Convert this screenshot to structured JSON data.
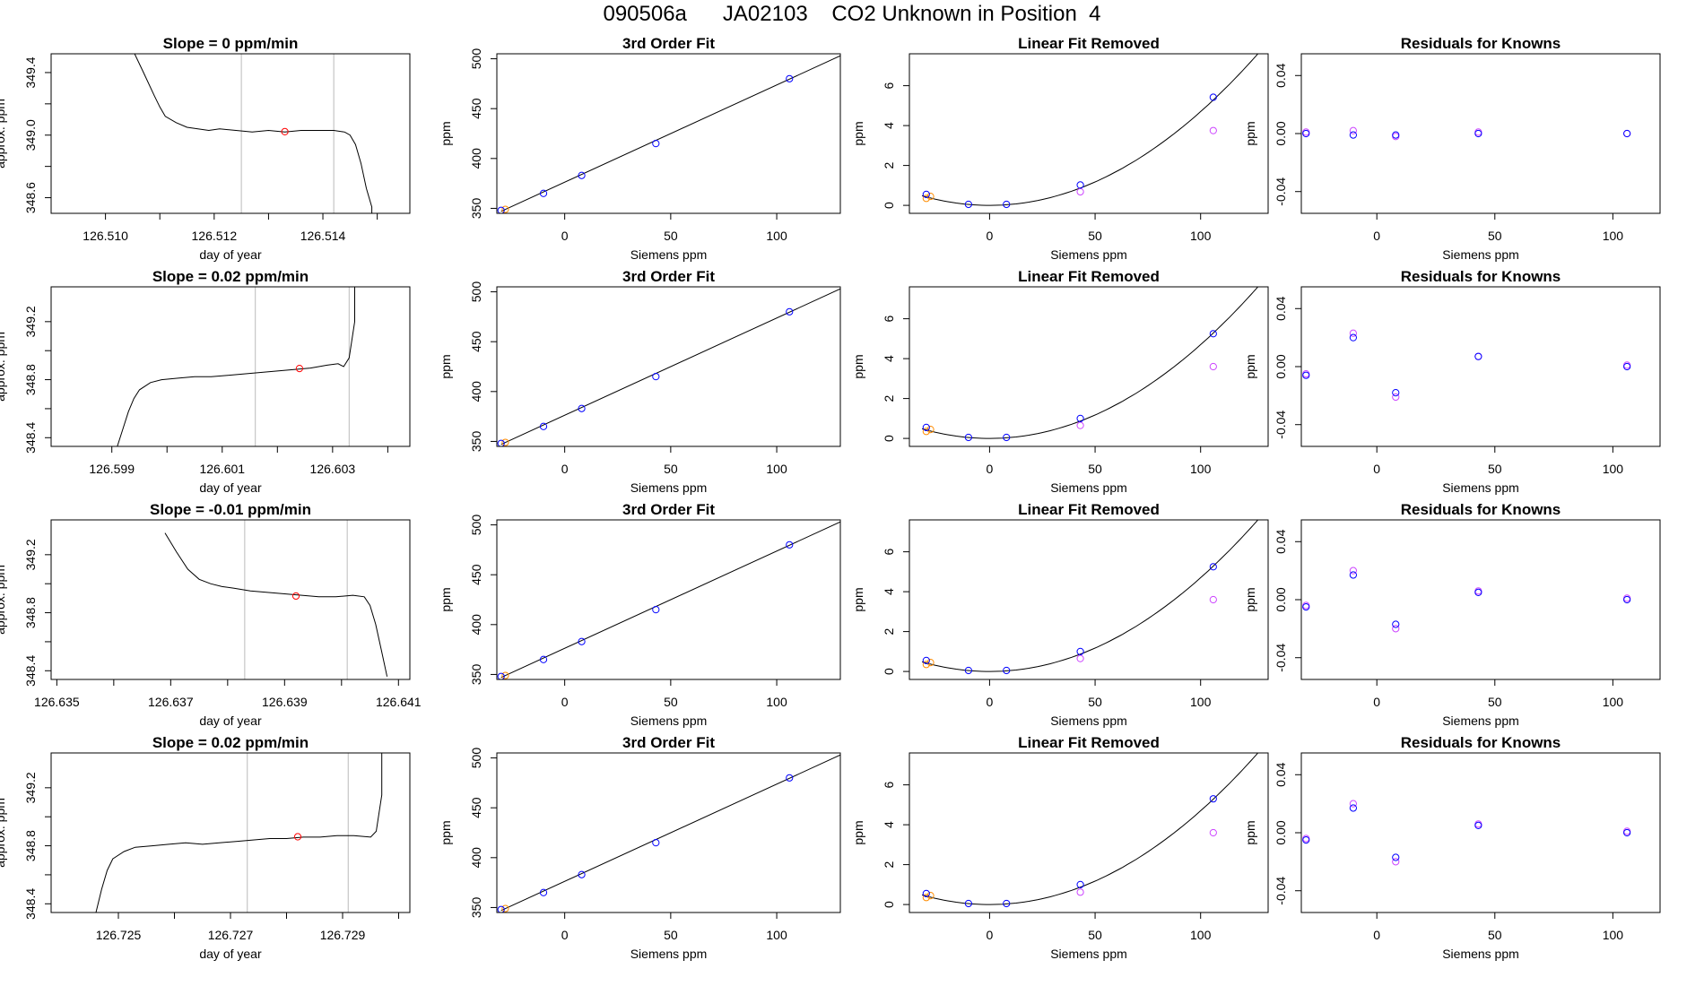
{
  "page": {
    "title_parts": [
      "090506a",
      "JA02103",
      "CO2 Unknown in Position",
      "4"
    ]
  },
  "colors": {
    "standard_point": "#0000ff",
    "first_point": "#ff8c00",
    "unknown_point": "#ff0000",
    "fitted_point": "#cc44ff",
    "trace": "#000000",
    "window_line": "#bbbbbb"
  },
  "chart_data": [
    {
      "type": "line",
      "title": "Slope =  0  ppm/min",
      "xlabel": "day of year",
      "ylabel": "approx. ppm",
      "xlim": [
        126.509,
        126.5156
      ],
      "ylim": [
        348.5,
        349.52
      ],
      "xticks": [
        126.51,
        126.512,
        126.514
      ],
      "xtick_labels": [
        "126.510",
        "126.512",
        "126.514"
      ],
      "xminor": [
        126.511,
        126.513,
        126.515
      ],
      "yticks": [
        348.6,
        349.0,
        349.4
      ],
      "ytick_labels": [
        "348.6",
        "349.0",
        "349.4"
      ],
      "yminor": [
        348.8,
        349.2
      ],
      "window": [
        126.5125,
        126.5142
      ],
      "unknown_point": {
        "x": 126.5133,
        "y": 349.022
      },
      "x": [
        126.5104,
        126.5107,
        126.5109,
        126.511,
        126.5111,
        126.5113,
        126.5115,
        126.5117,
        126.5119,
        126.5121,
        126.5124,
        126.5127,
        126.513,
        126.5133,
        126.5136,
        126.5139,
        126.5142,
        126.5144,
        126.5145,
        126.5146,
        126.5147,
        126.5148,
        126.5149,
        126.5149
      ],
      "y": [
        349.62,
        349.4,
        349.25,
        349.18,
        349.12,
        349.08,
        349.05,
        349.04,
        349.03,
        349.04,
        349.03,
        349.02,
        349.03,
        349.02,
        349.03,
        349.03,
        349.03,
        349.02,
        349.0,
        348.94,
        348.82,
        348.66,
        348.54,
        348.5
      ]
    },
    {
      "type": "scatter",
      "title": "3rd Order Fit",
      "xlabel": "Siemens ppm",
      "ylabel": "ppm",
      "xlim": [
        -32,
        130
      ],
      "ylim": [
        345,
        505
      ],
      "xticks": [
        0,
        50,
        100
      ],
      "yticks": [
        350,
        400,
        450,
        500
      ],
      "standards_x": [
        -30,
        -10,
        8,
        43,
        106
      ],
      "standards_y": [
        348,
        365,
        383,
        415,
        480
      ],
      "first_x": [
        -28
      ],
      "first_y": [
        349
      ],
      "fit_line": {
        "x": [
          -30,
          130
        ],
        "y": [
          347,
          503
        ]
      }
    },
    {
      "type": "scatter",
      "title": "Linear Fit Removed",
      "xlabel": "Siemens ppm",
      "ylabel": "ppm",
      "xlim": [
        -38,
        132
      ],
      "ylim": [
        -0.4,
        7.6
      ],
      "xticks": [
        0,
        50,
        100
      ],
      "yticks": [
        0,
        2,
        4,
        6
      ],
      "standards_x": [
        -30,
        -10,
        8,
        43,
        106
      ],
      "standards_y": [
        0.55,
        0.05,
        0.05,
        1.02,
        5.42
      ],
      "first_x": [
        -28,
        -30
      ],
      "first_y": [
        0.45,
        0.35
      ],
      "fitted_x": [
        43,
        106
      ],
      "fitted_y": [
        0.68,
        3.75
      ],
      "curve": {
        "a": 0.00047,
        "b": 0
      }
    },
    {
      "type": "scatter",
      "title": "Residuals for Knowns",
      "xlabel": "Siemens ppm",
      "ylabel": "ppm",
      "xlim": [
        -32,
        120
      ],
      "ylim": [
        -0.055,
        0.055
      ],
      "xticks": [
        0,
        50,
        100
      ],
      "yticks": [
        -0.04,
        0,
        0.04
      ],
      "ytick_labels": [
        "-0.04",
        "0.00",
        "0.04"
      ],
      "standards_x": [
        -30,
        -10,
        8,
        43,
        106
      ],
      "standards_y": [
        0,
        -0.001,
        -0.001,
        0,
        0
      ],
      "fitted_x": [
        -30,
        -10,
        8,
        43,
        106
      ],
      "fitted_y": [
        0.001,
        0.002,
        -0.002,
        0.001,
        0
      ]
    },
    {
      "type": "line",
      "title": "Slope =  0.02  ppm/min",
      "xlabel": "day of year",
      "ylabel": "approx. ppm",
      "xlim": [
        126.5979,
        126.6044
      ],
      "ylim": [
        348.34,
        349.44
      ],
      "xticks": [
        126.599,
        126.601,
        126.603
      ],
      "xtick_labels": [
        "126.599",
        "126.601",
        "126.603"
      ],
      "xminor": [
        126.6,
        126.602,
        126.604
      ],
      "yticks": [
        348.4,
        348.8,
        349.2
      ],
      "ytick_labels": [
        "348.4",
        "348.8",
        "349.2"
      ],
      "yminor": [
        348.6,
        349.0
      ],
      "window": [
        126.6016,
        126.6033
      ],
      "unknown_point": {
        "x": 126.6024,
        "y": 348.877
      },
      "x": [
        126.5991,
        126.5992,
        126.5993,
        126.5994,
        126.5995,
        126.5997,
        126.5999,
        126.6002,
        126.6005,
        126.6008,
        126.6011,
        126.6014,
        126.6017,
        126.602,
        126.6023,
        126.6026,
        126.6029,
        126.6031,
        126.6032,
        126.6033,
        126.6034,
        126.6034
      ],
      "y": [
        348.34,
        348.46,
        348.58,
        348.67,
        348.73,
        348.78,
        348.8,
        348.81,
        348.82,
        348.82,
        348.83,
        348.84,
        348.85,
        348.86,
        348.87,
        348.88,
        348.9,
        348.91,
        348.89,
        348.95,
        349.2,
        349.44
      ]
    },
    {
      "type": "scatter",
      "title": "3rd Order Fit",
      "xlabel": "Siemens ppm",
      "ylabel": "ppm",
      "xlim": [
        -32,
        130
      ],
      "ylim": [
        345,
        505
      ],
      "xticks": [
        0,
        50,
        100
      ],
      "yticks": [
        350,
        400,
        450,
        500
      ],
      "standards_x": [
        -30,
        -10,
        8,
        43,
        106
      ],
      "standards_y": [
        348,
        365,
        383,
        415,
        480
      ],
      "first_x": [
        -28
      ],
      "first_y": [
        349
      ],
      "fit_line": {
        "x": [
          -30,
          130
        ],
        "y": [
          347,
          503
        ]
      }
    },
    {
      "type": "scatter",
      "title": "Linear Fit Removed",
      "xlabel": "Siemens ppm",
      "ylabel": "ppm",
      "xlim": [
        -38,
        132
      ],
      "ylim": [
        -0.4,
        7.6
      ],
      "xticks": [
        0,
        50,
        100
      ],
      "yticks": [
        0,
        2,
        4,
        6
      ],
      "standards_x": [
        -30,
        -10,
        8,
        43,
        106
      ],
      "standards_y": [
        0.55,
        0.05,
        0.05,
        1.0,
        5.25
      ],
      "first_x": [
        -28,
        -30
      ],
      "first_y": [
        0.45,
        0.35
      ],
      "fitted_x": [
        43,
        106
      ],
      "fitted_y": [
        0.65,
        3.6
      ],
      "curve": {
        "a": 0.00047,
        "b": 0
      }
    },
    {
      "type": "scatter",
      "title": "Residuals for Knowns",
      "xlabel": "Siemens ppm",
      "ylabel": "ppm",
      "xlim": [
        -32,
        120
      ],
      "ylim": [
        -0.055,
        0.055
      ],
      "xticks": [
        0,
        50,
        100
      ],
      "yticks": [
        -0.04,
        0,
        0.04
      ],
      "ytick_labels": [
        "-0.04",
        "0.00",
        "0.04"
      ],
      "standards_x": [
        -30,
        -10,
        8,
        43,
        106
      ],
      "standards_y": [
        -0.006,
        0.02,
        -0.018,
        0.007,
        0
      ],
      "fitted_x": [
        -30,
        -10,
        8,
        43,
        106
      ],
      "fitted_y": [
        -0.005,
        0.023,
        -0.021,
        0.007,
        0.001
      ]
    },
    {
      "type": "line",
      "title": "Slope =  -0.01  ppm/min",
      "xlabel": "day of year",
      "ylabel": "approx. ppm",
      "xlim": [
        126.6349,
        126.6412
      ],
      "ylim": [
        348.34,
        349.44
      ],
      "xticks": [
        126.635,
        126.637,
        126.639,
        126.641
      ],
      "xtick_labels": [
        "126.635",
        "126.637",
        "126.639",
        "126.641"
      ],
      "xminor": [
        126.636,
        126.638,
        126.64
      ],
      "yticks": [
        348.4,
        348.8,
        349.2
      ],
      "ytick_labels": [
        "348.4",
        "348.8",
        "349.2"
      ],
      "yminor": [
        348.6,
        349.0
      ],
      "window": [
        126.6383,
        126.6401
      ],
      "unknown_point": {
        "x": 126.6392,
        "y": 348.915
      },
      "x": [
        126.6369,
        126.6371,
        126.6373,
        126.6375,
        126.6377,
        126.6379,
        126.6381,
        126.6384,
        126.6387,
        126.639,
        126.6393,
        126.6396,
        126.6399,
        126.6402,
        126.6404,
        126.6405,
        126.6406,
        126.6407,
        126.6408
      ],
      "y": [
        349.35,
        349.22,
        349.1,
        349.03,
        349.0,
        348.98,
        348.97,
        348.95,
        348.94,
        348.93,
        348.92,
        348.91,
        348.91,
        348.92,
        348.91,
        348.85,
        348.72,
        348.54,
        348.36
      ]
    },
    {
      "type": "scatter",
      "title": "3rd Order Fit",
      "xlabel": "Siemens ppm",
      "ylabel": "ppm",
      "xlim": [
        -32,
        130
      ],
      "ylim": [
        345,
        505
      ],
      "xticks": [
        0,
        50,
        100
      ],
      "yticks": [
        350,
        400,
        450,
        500
      ],
      "standards_x": [
        -30,
        -10,
        8,
        43,
        106
      ],
      "standards_y": [
        348,
        365,
        383,
        415,
        480
      ],
      "first_x": [
        -28
      ],
      "first_y": [
        349
      ],
      "fit_line": {
        "x": [
          -30,
          130
        ],
        "y": [
          347,
          503
        ]
      }
    },
    {
      "type": "scatter",
      "title": "Linear Fit Removed",
      "xlabel": "Siemens ppm",
      "ylabel": "ppm",
      "xlim": [
        -38,
        132
      ],
      "ylim": [
        -0.4,
        7.6
      ],
      "xticks": [
        0,
        50,
        100
      ],
      "yticks": [
        0,
        2,
        4,
        6
      ],
      "standards_x": [
        -30,
        -10,
        8,
        43,
        106
      ],
      "standards_y": [
        0.55,
        0.05,
        0.05,
        1.0,
        5.25
      ],
      "first_x": [
        -28,
        -30
      ],
      "first_y": [
        0.45,
        0.35
      ],
      "fitted_x": [
        43,
        106
      ],
      "fitted_y": [
        0.65,
        3.6
      ],
      "curve": {
        "a": 0.00047,
        "b": 0
      }
    },
    {
      "type": "scatter",
      "title": "Residuals for Knowns",
      "xlabel": "Siemens ppm",
      "ylabel": "ppm",
      "xlim": [
        -32,
        120
      ],
      "ylim": [
        -0.055,
        0.055
      ],
      "xticks": [
        0,
        50,
        100
      ],
      "yticks": [
        -0.04,
        0,
        0.04
      ],
      "ytick_labels": [
        "-0.04",
        "0.00",
        "0.04"
      ],
      "standards_x": [
        -30,
        -10,
        8,
        43,
        106
      ],
      "standards_y": [
        -0.005,
        0.017,
        -0.017,
        0.005,
        0
      ],
      "fitted_x": [
        -30,
        -10,
        8,
        43,
        106
      ],
      "fitted_y": [
        -0.004,
        0.02,
        -0.02,
        0.006,
        0.001
      ]
    },
    {
      "type": "line",
      "title": "Slope =  0.02  ppm/min",
      "xlabel": "day of year",
      "ylabel": "approx. ppm",
      "xlim": [
        126.7238,
        126.7302
      ],
      "ylim": [
        348.34,
        349.44
      ],
      "xticks": [
        126.725,
        126.727,
        126.729
      ],
      "xtick_labels": [
        "126.725",
        "126.727",
        "126.729"
      ],
      "xminor": [
        126.726,
        126.728,
        126.73
      ],
      "yticks": [
        348.4,
        348.8,
        349.2
      ],
      "ytick_labels": [
        "348.4",
        "348.8",
        "349.2"
      ],
      "yminor": [
        348.6,
        349.0
      ],
      "window": [
        126.7273,
        126.7291
      ],
      "unknown_point": {
        "x": 126.7282,
        "y": 348.862
      },
      "x": [
        126.7246,
        126.7247,
        126.7248,
        126.7249,
        126.7251,
        126.7253,
        126.7256,
        126.7259,
        126.7262,
        126.7265,
        126.7268,
        126.7271,
        126.7274,
        126.7277,
        126.728,
        126.7283,
        126.7286,
        126.7289,
        126.7292,
        126.7295,
        126.7296,
        126.7297,
        126.7297
      ],
      "y": [
        348.34,
        348.5,
        348.63,
        348.71,
        348.76,
        348.79,
        348.8,
        348.81,
        348.82,
        348.81,
        348.82,
        348.83,
        348.84,
        348.85,
        348.85,
        348.86,
        348.86,
        348.87,
        348.87,
        348.86,
        348.9,
        349.15,
        349.44
      ]
    },
    {
      "type": "scatter",
      "title": "3rd Order Fit",
      "xlabel": "Siemens ppm",
      "ylabel": "ppm",
      "xlim": [
        -32,
        130
      ],
      "ylim": [
        345,
        505
      ],
      "xticks": [
        0,
        50,
        100
      ],
      "yticks": [
        350,
        400,
        450,
        500
      ],
      "standards_x": [
        -30,
        -10,
        8,
        43,
        106
      ],
      "standards_y": [
        348,
        365,
        383,
        415,
        480
      ],
      "first_x": [
        -28
      ],
      "first_y": [
        349
      ],
      "fit_line": {
        "x": [
          -30,
          130
        ],
        "y": [
          347,
          503
        ]
      }
    },
    {
      "type": "scatter",
      "title": "Linear Fit Removed",
      "xlabel": "Siemens ppm",
      "ylabel": "ppm",
      "xlim": [
        -38,
        132
      ],
      "ylim": [
        -0.4,
        7.6
      ],
      "xticks": [
        0,
        50,
        100
      ],
      "yticks": [
        0,
        2,
        4,
        6
      ],
      "standards_x": [
        -30,
        -10,
        8,
        43,
        106
      ],
      "standards_y": [
        0.55,
        0.05,
        0.05,
        1.0,
        5.3
      ],
      "first_x": [
        -28,
        -30
      ],
      "first_y": [
        0.45,
        0.35
      ],
      "fitted_x": [
        43,
        106
      ],
      "fitted_y": [
        0.62,
        3.6
      ],
      "curve": {
        "a": 0.00047,
        "b": 0
      }
    },
    {
      "type": "scatter",
      "title": "Residuals for Knowns",
      "xlabel": "Siemens ppm",
      "ylabel": "ppm",
      "xlim": [
        -32,
        120
      ],
      "ylim": [
        -0.055,
        0.055
      ],
      "xticks": [
        0,
        50,
        100
      ],
      "yticks": [
        -0.04,
        0,
        0.04
      ],
      "ytick_labels": [
        "-0.04",
        "0.00",
        "0.04"
      ],
      "standards_x": [
        -30,
        -10,
        8,
        43,
        106
      ],
      "standards_y": [
        -0.005,
        0.017,
        -0.017,
        0.005,
        0
      ],
      "fitted_x": [
        -30,
        -10,
        8,
        43,
        106
      ],
      "fitted_y": [
        -0.004,
        0.02,
        -0.02,
        0.006,
        0.001
      ]
    }
  ]
}
